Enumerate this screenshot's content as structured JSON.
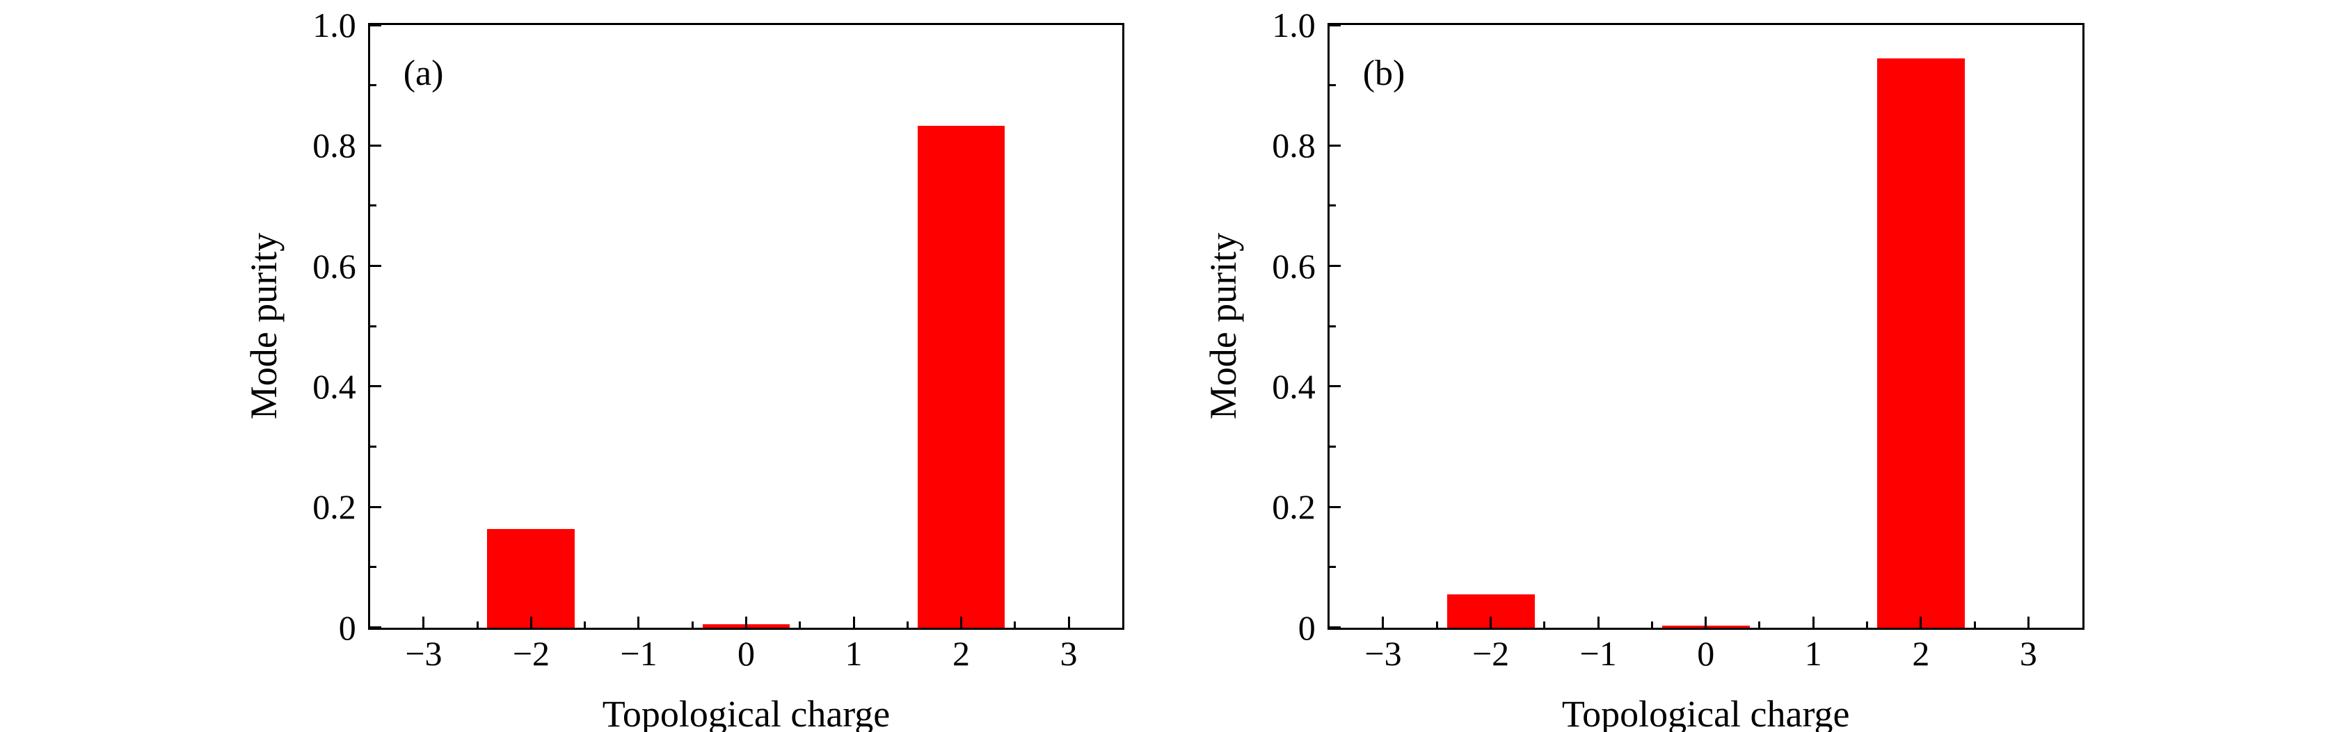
{
  "figure": {
    "background_color": "#ffffff",
    "text_color": "#000000",
    "axis_color": "#000000"
  },
  "chart_data": [
    {
      "type": "bar",
      "panel_label": "(a)",
      "title": "",
      "xlabel": "Topological charge",
      "ylabel": "Mode purity",
      "categories": [
        -3,
        -2,
        -1,
        0,
        1,
        2,
        3
      ],
      "x_tick_labels": [
        "−3",
        "−2",
        "−1",
        "0",
        "1",
        "2",
        "3"
      ],
      "values": [
        0,
        0.163,
        0,
        0.005,
        0,
        0.833,
        0
      ],
      "xlim": [
        -3.5,
        3.5
      ],
      "ylim": [
        0,
        1.0
      ],
      "y_major_ticks": [
        0,
        0.2,
        0.4,
        0.6,
        0.8,
        1.0
      ],
      "y_tick_labels": [
        "0",
        "0.2",
        "0.4",
        "0.6",
        "0.8",
        "1.0"
      ],
      "y_minor_step": 0.1,
      "x_minor_step": 0.5,
      "bar_width": 0.815,
      "bar_color": "#ff0000",
      "grid": false,
      "legend": null
    },
    {
      "type": "bar",
      "panel_label": "(b)",
      "title": "",
      "xlabel": "Topological charge",
      "ylabel": "Mode purity",
      "categories": [
        -3,
        -2,
        -1,
        0,
        1,
        2,
        3
      ],
      "x_tick_labels": [
        "−3",
        "−2",
        "−1",
        "0",
        "1",
        "2",
        "3"
      ],
      "values": [
        0,
        0.055,
        0,
        0.003,
        0,
        0.945,
        0
      ],
      "xlim": [
        -3.5,
        3.5
      ],
      "ylim": [
        0,
        1.0
      ],
      "y_major_ticks": [
        0,
        0.2,
        0.4,
        0.6,
        0.8,
        1.0
      ],
      "y_tick_labels": [
        "0",
        "0.2",
        "0.4",
        "0.6",
        "0.8",
        "1.0"
      ],
      "y_minor_step": 0.1,
      "x_minor_step": 0.5,
      "bar_width": 0.815,
      "bar_color": "#ff0000",
      "grid": false,
      "legend": null
    }
  ]
}
